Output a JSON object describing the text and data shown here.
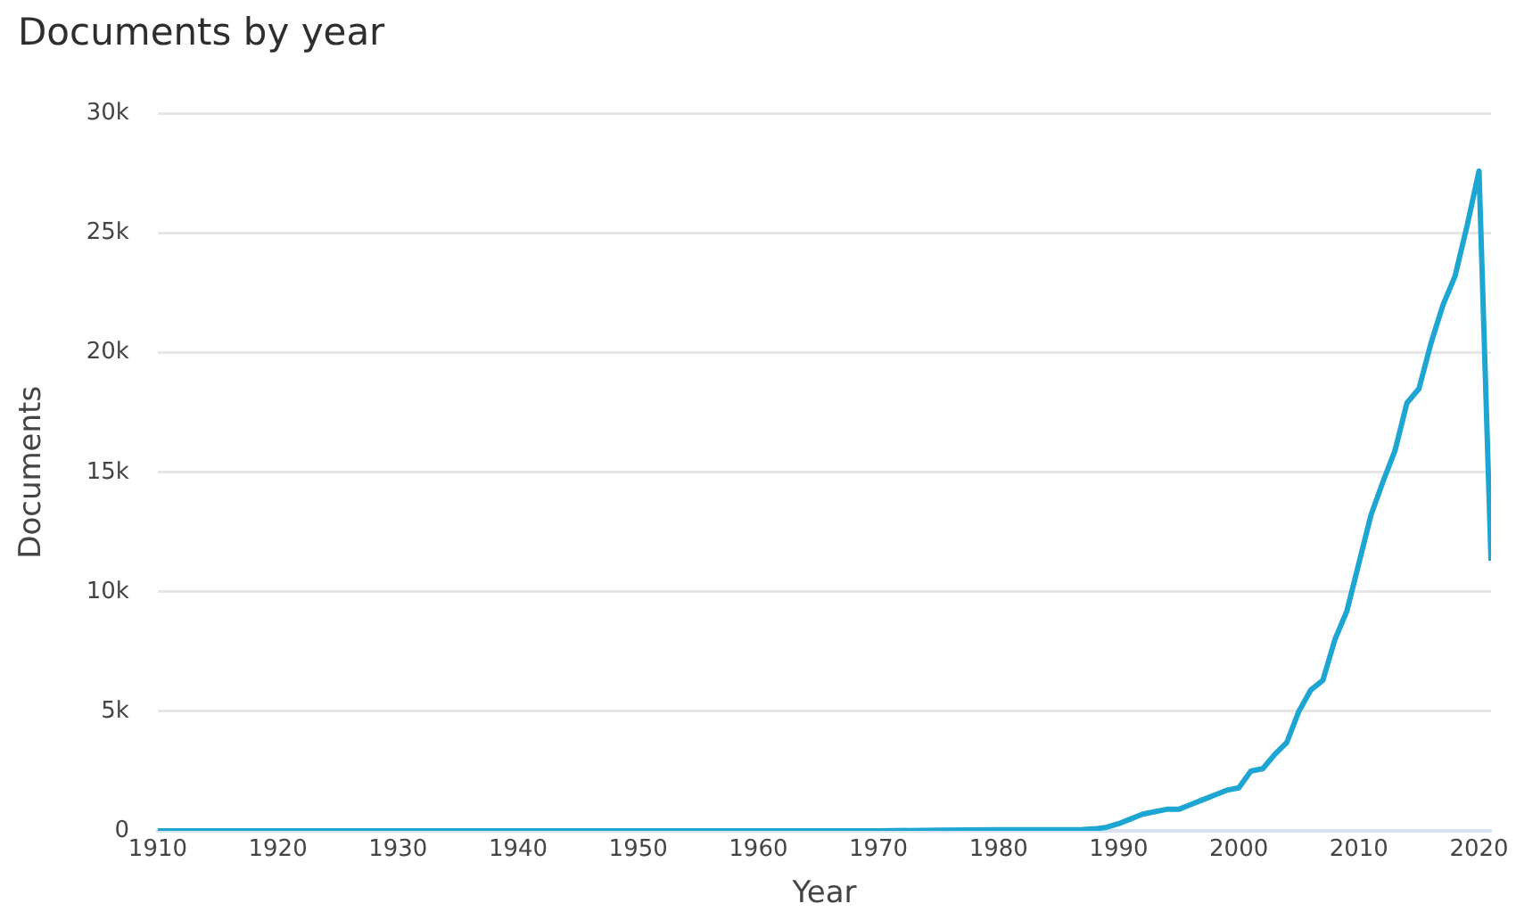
{
  "chart_data": {
    "type": "line",
    "title": "Documents by year",
    "xlabel": "Year",
    "ylabel": "Documents",
    "x": [
      1910,
      1970,
      1975,
      1980,
      1985,
      1987,
      1988,
      1989,
      1990,
      1991,
      1992,
      1993,
      1994,
      1995,
      1996,
      1997,
      1998,
      1999,
      2000,
      2001,
      2002,
      2003,
      2004,
      2005,
      2006,
      2007,
      2008,
      2009,
      2010,
      2011,
      2012,
      2013,
      2014,
      2015,
      2016,
      2017,
      2018,
      2019,
      2020,
      2021
    ],
    "series": [
      {
        "color": "#1ea6d3",
        "values": [
          0,
          0,
          30,
          50,
          50,
          60,
          80,
          150,
          300,
          500,
          700,
          800,
          900,
          900,
          1100,
          1300,
          1500,
          1700,
          1800,
          2500,
          2600,
          3200,
          3700,
          5000,
          5900,
          6300,
          8000,
          9200,
          11200,
          13200,
          14600,
          15900,
          17900,
          18500,
          20400,
          22000,
          23200,
          25300,
          27600,
          11300
        ]
      }
    ],
    "xlim": [
      1910,
      2021
    ],
    "xticks": [
      1910,
      1920,
      1930,
      1940,
      1950,
      1960,
      1970,
      1980,
      1990,
      2000,
      2010,
      2020
    ],
    "ylim": [
      0,
      30000
    ],
    "yticks": [
      0,
      {
        "value": 5000,
        "label": "5k"
      },
      {
        "value": 10000,
        "label": "10k"
      },
      {
        "value": 15000,
        "label": "15k"
      },
      {
        "value": 20000,
        "label": "20k"
      },
      {
        "value": 25000,
        "label": "25k"
      },
      {
        "value": 30000,
        "label": "30k"
      }
    ],
    "grid": "y",
    "legend": false,
    "marker": "none",
    "line_style": "solid"
  }
}
